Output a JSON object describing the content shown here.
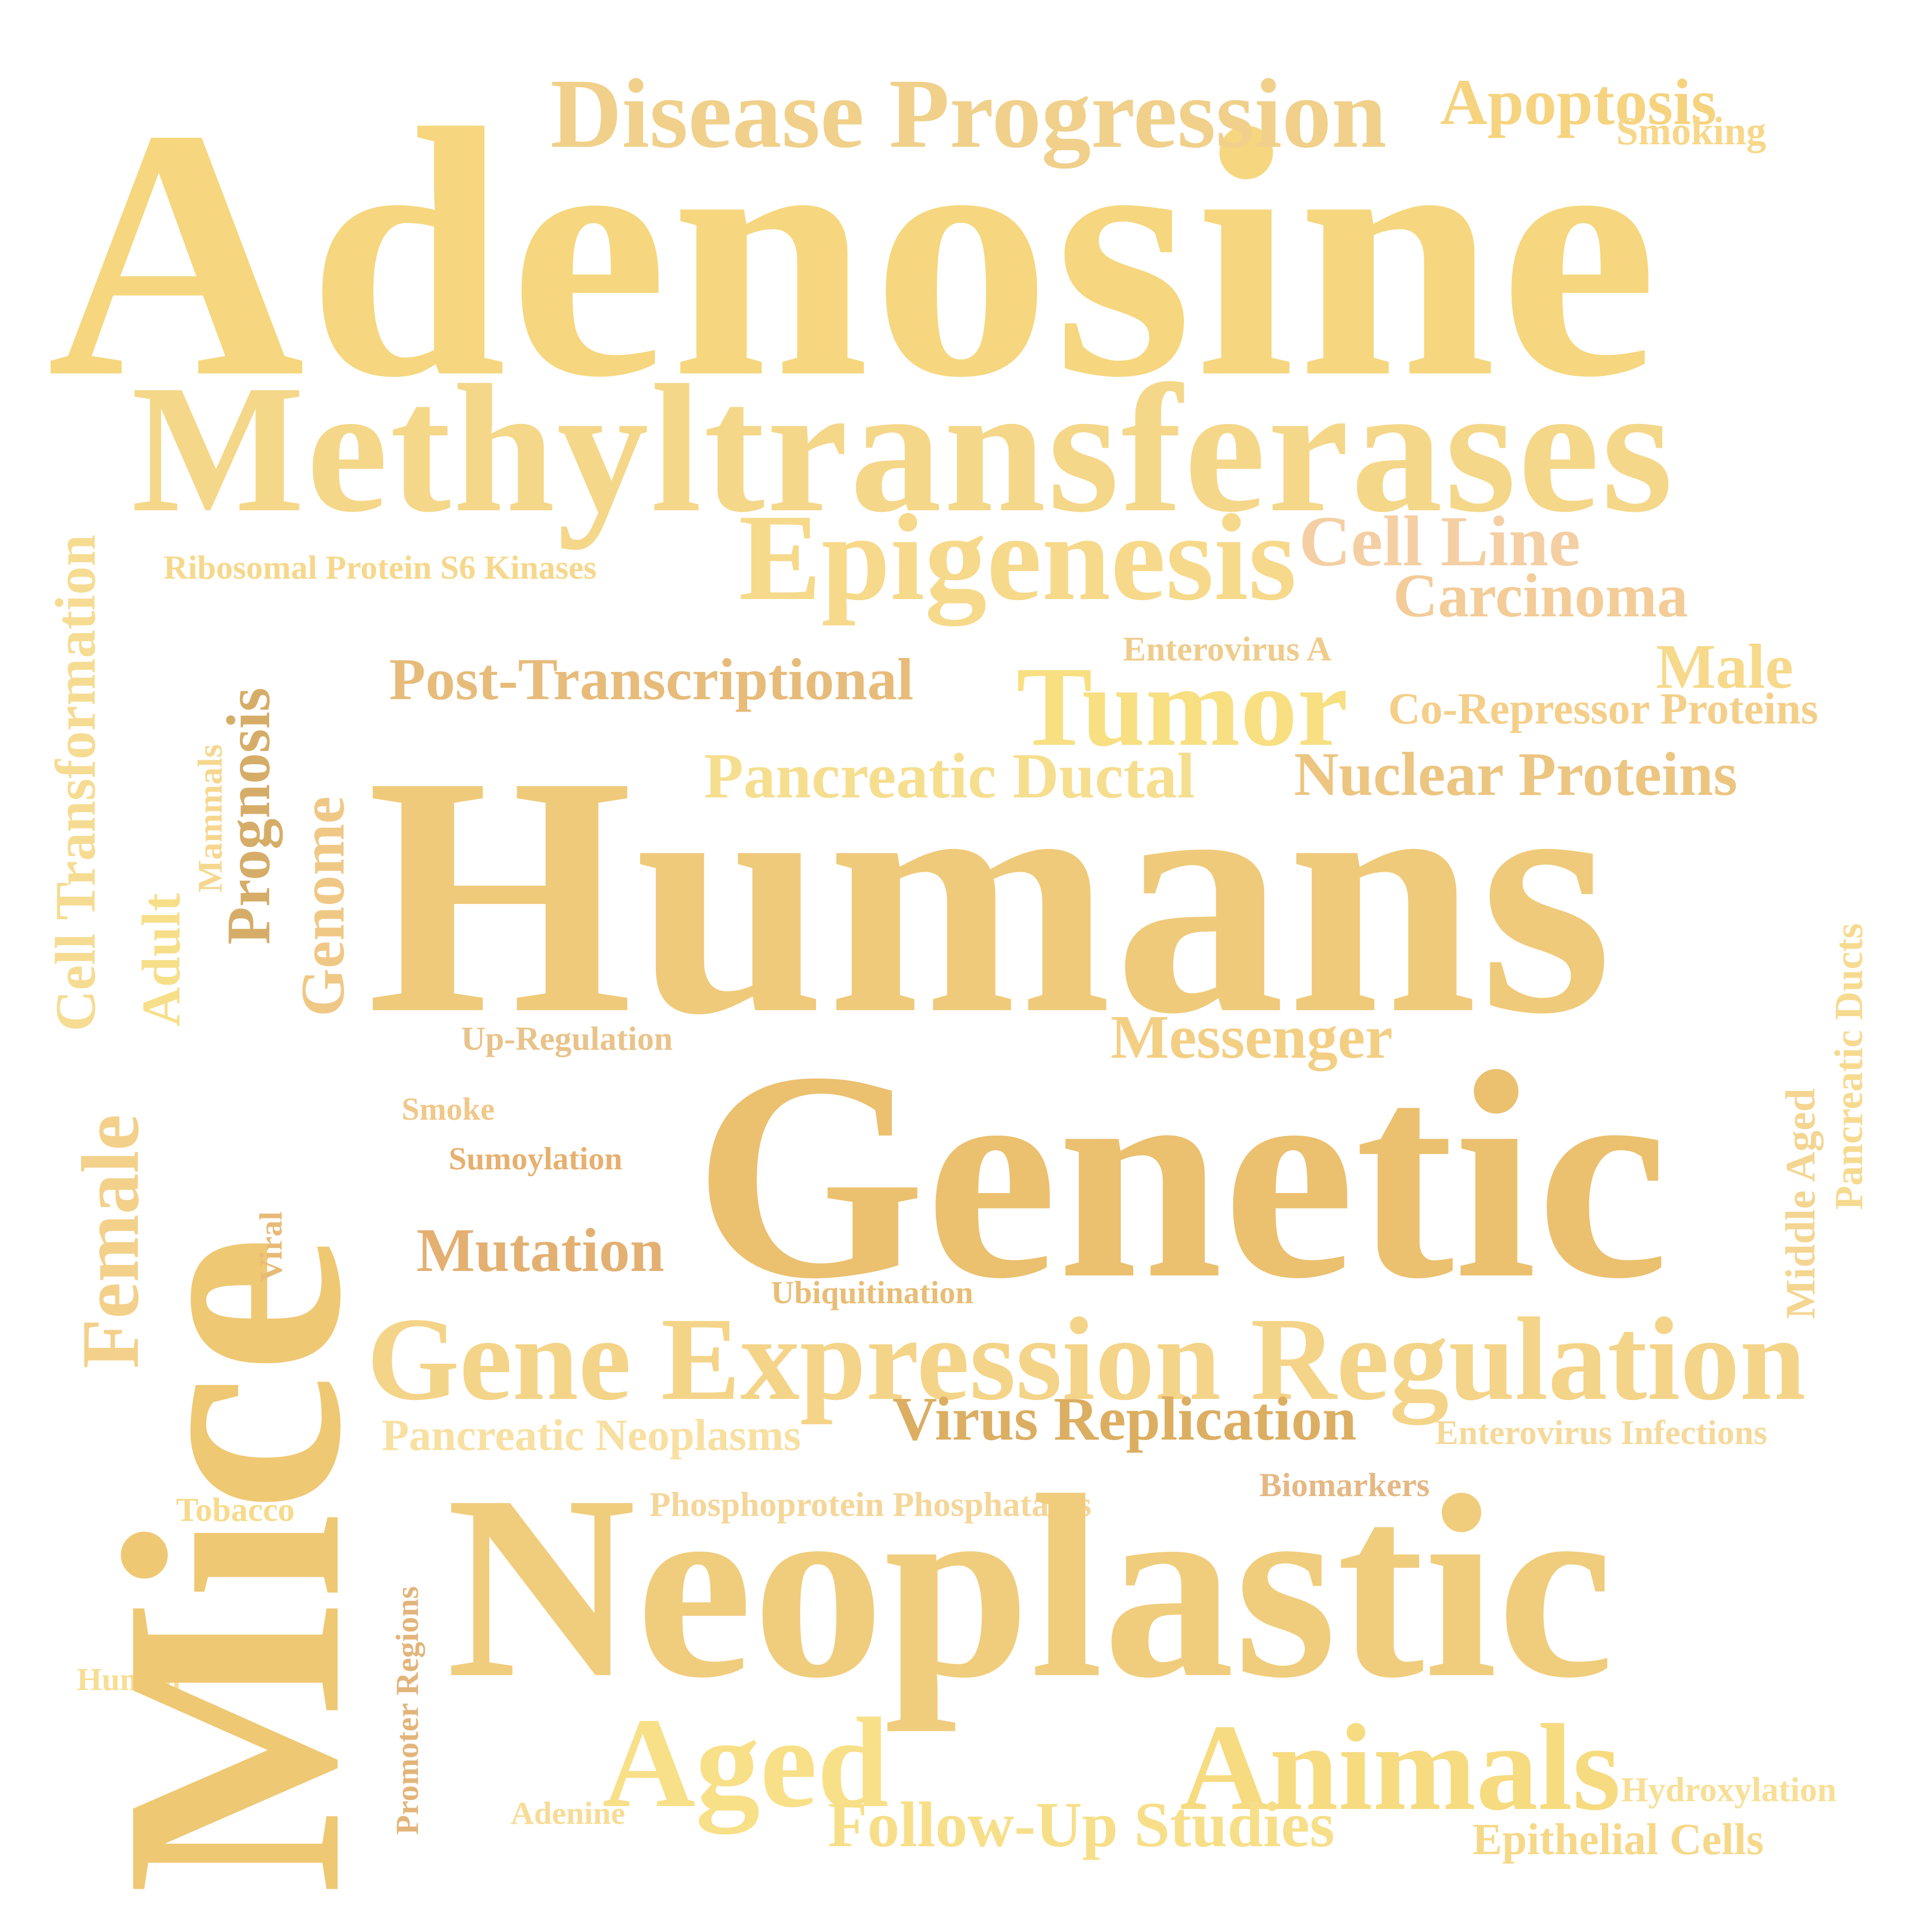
{
  "words": {
    "adenosine": "Adenosine",
    "disease_progression": "Disease Progression",
    "apoptosis": "Apoptosis",
    "smoking": "Smoking",
    "methyltransferases": "Methyltransferases",
    "epigenesis": "Epigenesis",
    "cell_line": "Cell Line",
    "carcinoma": "Carcinoma",
    "ribosomal_protein_s6_kinases": "Ribosomal Protein S6 Kinases",
    "enterovirus_a": "Enterovirus A",
    "male": "Male",
    "post_transcriptional": "Post-Transcriptional",
    "tumor": "Tumor",
    "co_repressor_proteins": "Co-Repressor Proteins",
    "pancreatic_ductal": "Pancreatic Ductal",
    "nuclear_proteins": "Nuclear Proteins",
    "humans": "Humans",
    "up_regulation": "Up-Regulation",
    "messenger": "Messenger",
    "smoke": "Smoke",
    "sumoylation": "Sumoylation",
    "genetic": "Genetic",
    "mutation": "Mutation",
    "ubiquitination": "Ubiquitination",
    "gene_expression_regulation": "Gene Expression Regulation",
    "virus_replication": "Virus Replication",
    "pancreatic_neoplasms": "Pancreatic Neoplasms",
    "enterovirus_infections": "Enterovirus Infections",
    "biomarkers": "Biomarkers",
    "tobacco": "Tobacco",
    "phosphoprotein_phosphatases": "Phosphoprotein Phosphatases",
    "neoplastic": "Neoplastic",
    "human": "Human",
    "aged": "Aged",
    "animals": "Animals",
    "hydroxylation": "Hydroxylation",
    "adenine": "Adenine",
    "follow_up_studies": "Follow-Up Studies",
    "epithelial_cells": "Epithelial Cells",
    "mice": "Mice",
    "cell_transformation": "Cell Transformation",
    "female": "Female",
    "adult": "Adult",
    "mammals": "Mammals",
    "prognosis": "Prognosis",
    "genome": "Genome",
    "viral": "Viral",
    "promoter_regions": "Promoter Regions",
    "middle_aged": "Middle Aged",
    "pancreatic_ducts": "Pancreatic Ducts"
  },
  "colors": {
    "background": "#ffffff",
    "palette": [
      "#f6d77f",
      "#efca7a",
      "#ebc06f",
      "#dcae62",
      "#f4cfa4",
      "#f8e0a2"
    ]
  }
}
